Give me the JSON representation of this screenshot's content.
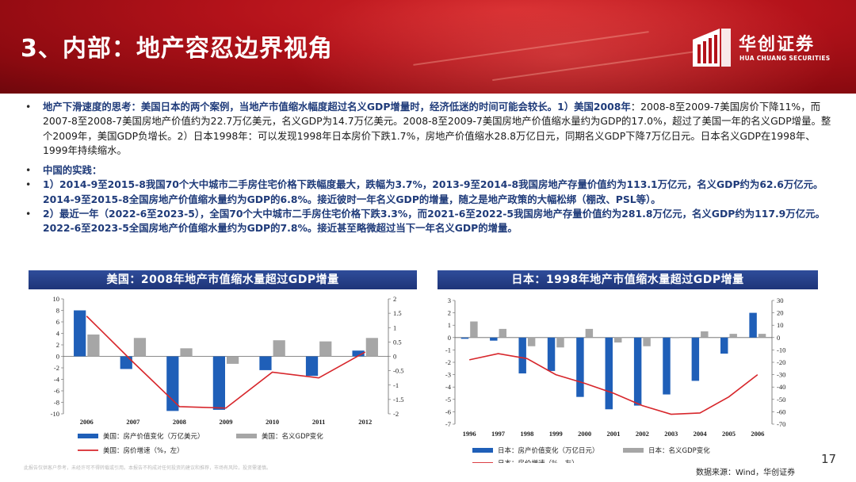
{
  "header": {
    "title": "3、内部：地产容忍边界视角",
    "logo_cn": "华创证券",
    "logo_en": "HUA CHUANG SECURITIES"
  },
  "bullets": {
    "b1_bold": "地产下滑速度的思考：美国日本的两个案例，当地产市值缩水幅度超过名义GDP增量时，经济低迷的时间可能会较长。1）美国2008年",
    "b1_rest": "：2008-8至2009-7美国房价下降11%，而2007-8至2008-7美国房地产价值约为22.7万亿美元，名义GDP为14.7万亿美元。2008-8至2009-7美国房地产价值缩水量约为GDP的17.0%，超过了美国一年的名义GDP增量。整个2009年，美国GDP负增长。2）日本1998年：可以发现1998年日本房价下跌1.7%，房地产价值缩水28.8万亿日元，同期名义GDP下降7万亿日元。日本名义GDP在1998年、1999年持续缩水。",
    "b2": "中国的实践：",
    "b3": "1）2014-9至2015-8我国70个大中城市二手房住宅价格下跌幅度最大，跌幅为3.7%，2013-9至2014-8我国房地产存量价值约为113.1万亿元，名义GDP约为62.6万亿元。2014-9至2015-8全国房地产价值缩水量约为GDP的6.8%。接近彼时一年名义GDP的增量，随之是地产政策的大幅松绑（棚改、PSL等）。",
    "b4": "2）最近一年（2022-6至2023-5），全国70个大中城市二手房住宅价格下跌3.3%，而2021-6至2022-5我国房地产存量价值约为281.8万亿元，名义GDP约为117.9万亿元。2022-6至2023-5全国房地产价值缩水量约为GDP的7.8%。接近甚至略微超过当下一年名义GDP的增量。"
  },
  "charts_titles": {
    "us": "美国：2008年地产市值缩水量超过GDP增量",
    "jp": "日本：1998年地产市值缩水量超过GDP增量"
  },
  "chart_data": [
    {
      "type": "bar",
      "title": "美国：2008年地产市值缩水量超过GDP增量",
      "categories": [
        "2006",
        "2007",
        "2008",
        "2009",
        "2010",
        "2011",
        "2012"
      ],
      "y_left_range": [
        -10,
        10
      ],
      "y_left_ticks": [
        "10",
        "8",
        "6",
        "4",
        "2",
        "0",
        "-2",
        "-4",
        "-6",
        "-8",
        "-10"
      ],
      "y_right_range": [
        -2,
        2
      ],
      "y_right_ticks": [
        "2",
        "1.5",
        "1",
        "0.5",
        "0",
        "-0.5",
        "-1",
        "-1.5",
        "-2"
      ],
      "series": [
        {
          "name": "美国：房产价值变化（万亿美元）",
          "axis": "left",
          "kind": "bar",
          "color": "#1f5fb8",
          "values": [
            8.0,
            -2.2,
            -9.5,
            -9.3,
            -2.4,
            -3.4,
            1.0
          ]
        },
        {
          "name": "美国：名义GDP变化",
          "axis": "left",
          "kind": "bar",
          "color": "#a6a6a6",
          "values": [
            3.8,
            3.2,
            1.4,
            -1.3,
            2.8,
            2.6,
            3.2
          ]
        },
        {
          "name": "美国：房价增速（%，左）",
          "axis": "right",
          "kind": "line",
          "color": "#d7262b",
          "values": [
            1.4,
            -0.2,
            -1.75,
            -1.8,
            -0.55,
            -0.75,
            0.15
          ]
        }
      ],
      "legend": "bottom"
    },
    {
      "type": "bar",
      "title": "日本：1998年地产市值缩水量超过GDP增量",
      "categories": [
        "1996",
        "1997",
        "1998",
        "1999",
        "2000",
        "2001",
        "2002",
        "2003",
        "2004",
        "2005",
        "2006"
      ],
      "y_left_range": [
        -7,
        3
      ],
      "y_left_ticks": [
        "3",
        "2",
        "1",
        "0",
        "-1",
        "-2",
        "-3",
        "-4",
        "-5",
        "-6",
        "-7"
      ],
      "y_right_range": [
        -70,
        30
      ],
      "y_right_ticks": [
        "30",
        "20",
        "10",
        "0",
        "-10",
        "-20",
        "-30",
        "-40",
        "-50",
        "-60",
        "-70"
      ],
      "series": [
        {
          "name": "日本：房产价值变化（万亿日元）",
          "axis": "left",
          "kind": "bar",
          "color": "#1f5fb8",
          "values": [
            -0.1,
            -0.25,
            -2.9,
            -2.7,
            -4.8,
            -5.8,
            -5.5,
            -4.6,
            -3.5,
            -1.3,
            2.0
          ]
        },
        {
          "name": "日本：名义GDP变化",
          "axis": "left",
          "kind": "bar",
          "color": "#a6a6a6",
          "values": [
            1.3,
            0.7,
            -0.7,
            -0.8,
            0.7,
            -0.4,
            -0.7,
            0.0,
            0.5,
            0.3,
            0.3
          ]
        },
        {
          "name": "日本：房价增速（%，左）",
          "axis": "right",
          "kind": "line",
          "color": "#d7262b",
          "values": [
            -18,
            -13,
            -17,
            -30,
            -37,
            -45,
            -55,
            -62,
            -61,
            -48,
            -30
          ]
        }
      ],
      "legend": "bottom"
    }
  ],
  "footer": {
    "disclaimer": "此报告仅供客户参考，未经许可不得转载或引用。本报告不构成对任何投资的建议和推荐，市场有风险，投资需谨慎。",
    "source": "数据来源：Wind，华创证券",
    "page": "17"
  },
  "colors": {
    "banner": "#b3121a",
    "panel_head": "#24408a",
    "accent_blue": "#1f5fb8",
    "line_red": "#d7262b",
    "text_blue": "#1f3b7a"
  }
}
